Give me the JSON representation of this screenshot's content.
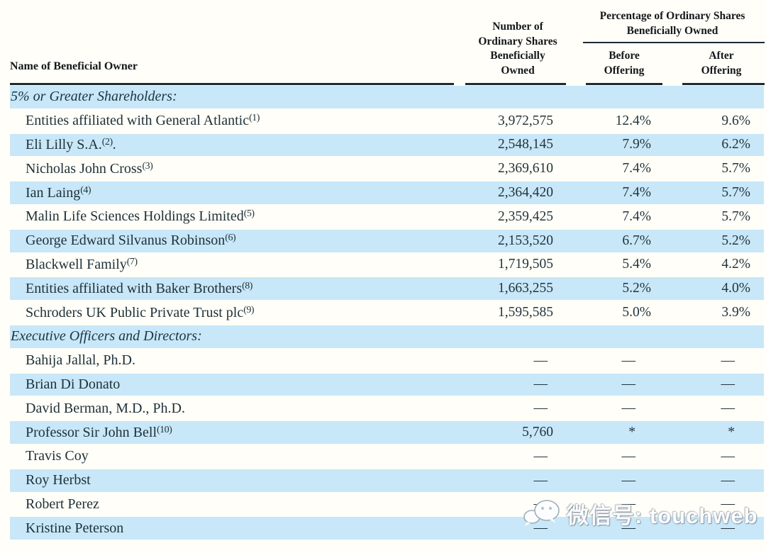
{
  "table": {
    "headers": {
      "name": "Name of Beneficial Owner",
      "shares": "Number of\nOrdinary Shares\nBeneficially\nOwned",
      "pct_group": "Percentage of Ordinary Shares\nBeneficially Owned",
      "before": "Before\nOffering",
      "after": "After\nOffering"
    },
    "rows": [
      {
        "section": true,
        "name": "5% or Greater Shareholders:",
        "bg": "blue"
      },
      {
        "section": false,
        "name": "Entities affiliated with General Atlantic",
        "sup": "(1)",
        "after_name": "",
        "shares": "3,972,575",
        "before": "12.4%",
        "after": "9.6%",
        "bg": "white"
      },
      {
        "section": false,
        "name": "Eli Lilly S.A.",
        "sup": "(2)",
        "after_name": ".",
        "shares": "2,548,145",
        "before": "7.9%",
        "after": "6.2%",
        "bg": "blue"
      },
      {
        "section": false,
        "name": "Nicholas John Cross",
        "sup": "(3)",
        "after_name": "",
        "shares": "2,369,610",
        "before": "7.4%",
        "after": "5.7%",
        "bg": "white"
      },
      {
        "section": false,
        "name": "Ian Laing",
        "sup": "(4)",
        "after_name": "",
        "shares": "2,364,420",
        "before": "7.4%",
        "after": "5.7%",
        "bg": "blue"
      },
      {
        "section": false,
        "name": "Malin Life Sciences Holdings Limited",
        "sup": "(5)",
        "after_name": "",
        "shares": "2,359,425",
        "before": "7.4%",
        "after": "5.7%",
        "bg": "white"
      },
      {
        "section": false,
        "name": "George Edward Silvanus Robinson",
        "sup": "(6)",
        "after_name": "",
        "shares": "2,153,520",
        "before": "6.7%",
        "after": "5.2%",
        "bg": "blue"
      },
      {
        "section": false,
        "name": "Blackwell Family",
        "sup": "(7)",
        "after_name": "",
        "shares": "1,719,505",
        "before": "5.4%",
        "after": "4.2%",
        "bg": "white"
      },
      {
        "section": false,
        "name": "Entities affiliated with Baker Brothers",
        "sup": "(8)",
        "after_name": "",
        "shares": "1,663,255",
        "before": "5.2%",
        "after": "4.0%",
        "bg": "blue"
      },
      {
        "section": false,
        "name": "Schroders UK Public Private Trust plc",
        "sup": "(9)",
        "after_name": "",
        "shares": "1,595,585",
        "before": "5.0%",
        "after": "3.9%",
        "bg": "white"
      },
      {
        "section": true,
        "name": "Executive Officers and Directors:",
        "bg": "blue"
      },
      {
        "section": false,
        "name": "Bahija Jallal, Ph.D.",
        "sup": "",
        "after_name": "",
        "shares": "—",
        "before": "—",
        "after": "—",
        "bg": "white"
      },
      {
        "section": false,
        "name": "Brian Di Donato",
        "sup": "",
        "after_name": "",
        "shares": "—",
        "before": "—",
        "after": "—",
        "bg": "blue"
      },
      {
        "section": false,
        "name": "David Berman, M.D., Ph.D.",
        "sup": "",
        "after_name": "",
        "shares": "—",
        "before": "—",
        "after": "—",
        "bg": "white"
      },
      {
        "section": false,
        "name": "Professor Sir John Bell",
        "sup": "(10)",
        "after_name": "",
        "shares": "5,760",
        "before": "*",
        "after": "*",
        "bg": "blue"
      },
      {
        "section": false,
        "name": "Travis Coy",
        "sup": "",
        "after_name": "",
        "shares": "—",
        "before": "—",
        "after": "—",
        "bg": "white"
      },
      {
        "section": false,
        "name": "Roy Herbst",
        "sup": "",
        "after_name": "",
        "shares": "—",
        "before": "—",
        "after": "—",
        "bg": "blue"
      },
      {
        "section": false,
        "name": "Robert Perez",
        "sup": "",
        "after_name": "",
        "shares": "—",
        "before": "—",
        "after": "—",
        "bg": "white"
      },
      {
        "section": false,
        "name": "Kristine Peterson",
        "sup": "",
        "after_name": "",
        "shares": "—",
        "before": "—",
        "after": "—",
        "bg": "blue"
      }
    ]
  },
  "watermark": {
    "label": "微信号: touchweb",
    "icon": "wechat-icon"
  },
  "colors": {
    "row_blue": "#c8e7f8",
    "rule": "#1e2a30",
    "text": "#1e3038"
  }
}
